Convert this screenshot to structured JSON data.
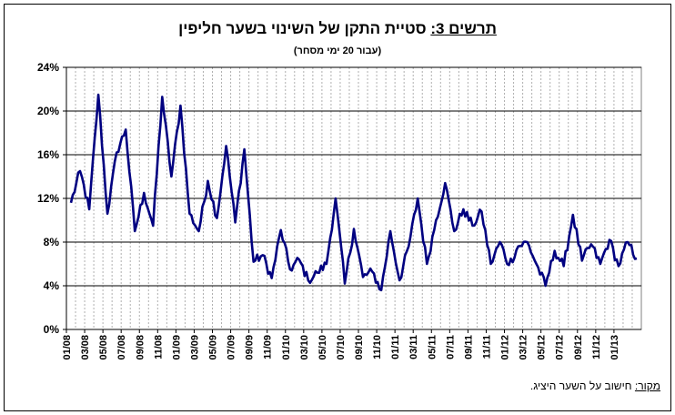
{
  "chart_data": {
    "type": "line",
    "title_prefix": "תרשים 3:",
    "title": "סטיית התקן של השינוי בשער חליפין",
    "subtitle": "(עבור 20 ימי מסחר)",
    "source_label": "מקור:",
    "source_text": " חישוב על השער היציג.",
    "xlabel": "",
    "ylabel": "",
    "ylim": [
      0,
      24
    ],
    "y_ticks": [
      "0%",
      "4%",
      "8%",
      "12%",
      "16%",
      "20%",
      "24%"
    ],
    "x_ticks": [
      "01/08",
      "03/08",
      "05/08",
      "07/08",
      "09/08",
      "11/08",
      "01/09",
      "03/09",
      "05/09",
      "07/09",
      "09/09",
      "11/09",
      "01/10",
      "03/10",
      "05/10",
      "07/10",
      "09/10",
      "11/10",
      "01/11",
      "03/11",
      "05/11",
      "07/11",
      "09/11",
      "11/11",
      "01/12",
      "03/12",
      "05/12",
      "07/12",
      "09/12",
      "11/12",
      "01/13"
    ],
    "grid": "horizontal solid, vertical dashed",
    "line_color": "#000080",
    "series": [
      {
        "name": "",
        "points": [
          [
            "01/08",
            11.6
          ],
          [
            "02/08",
            14.5
          ],
          [
            "03/08",
            11.0
          ],
          [
            "04/08",
            21.5
          ],
          [
            "05/08",
            10.6
          ],
          [
            "06/08",
            16.2
          ],
          [
            "07/08",
            18.3
          ],
          [
            "08/08",
            9.0
          ],
          [
            "09/08",
            12.5
          ],
          [
            "10/08",
            9.5
          ],
          [
            "11/08",
            21.3
          ],
          [
            "12/08",
            14.0
          ],
          [
            "01/09",
            20.5
          ],
          [
            "02/09",
            10.6
          ],
          [
            "03/09",
            9.0
          ],
          [
            "04/09",
            13.6
          ],
          [
            "05/09",
            10.2
          ],
          [
            "06/09",
            16.8
          ],
          [
            "07/09",
            9.8
          ],
          [
            "08/09",
            16.5
          ],
          [
            "09/09",
            6.2
          ],
          [
            "10/09",
            6.8
          ],
          [
            "11/09",
            4.7
          ],
          [
            "12/09",
            9.1
          ],
          [
            "01/10",
            5.5
          ],
          [
            "02/10",
            6.4
          ],
          [
            "03/10",
            4.5
          ],
          [
            "04/10",
            5.2
          ],
          [
            "05/10",
            6.0
          ],
          [
            "06/10",
            12.0
          ],
          [
            "07/10",
            4.2
          ],
          [
            "08/10",
            9.2
          ],
          [
            "09/10",
            4.8
          ],
          [
            "10/10",
            5.3
          ],
          [
            "11/10",
            3.6
          ],
          [
            "12/10",
            9.0
          ],
          [
            "01/11",
            4.5
          ],
          [
            "02/11",
            7.6
          ],
          [
            "03/11",
            12.0
          ],
          [
            "04/11",
            6.0
          ],
          [
            "05/11",
            10.0
          ],
          [
            "06/11",
            13.4
          ],
          [
            "07/11",
            9.0
          ],
          [
            "08/11",
            11.0
          ],
          [
            "09/11",
            9.5
          ],
          [
            "10/11",
            10.8
          ],
          [
            "11/11",
            6.0
          ],
          [
            "12/11",
            8.0
          ],
          [
            "01/12",
            5.9
          ],
          [
            "02/12",
            7.6
          ],
          [
            "03/12",
            8.0
          ],
          [
            "04/12",
            6.0
          ],
          [
            "05/12",
            4.0
          ],
          [
            "06/12",
            7.2
          ],
          [
            "07/12",
            5.8
          ],
          [
            "08/12",
            10.5
          ],
          [
            "09/12",
            6.3
          ],
          [
            "10/12",
            7.8
          ],
          [
            "11/12",
            6.0
          ],
          [
            "12/12",
            8.2
          ],
          [
            "01/13",
            5.8
          ],
          [
            "02/13",
            8.0
          ],
          [
            "03/13",
            6.5
          ]
        ]
      }
    ]
  }
}
